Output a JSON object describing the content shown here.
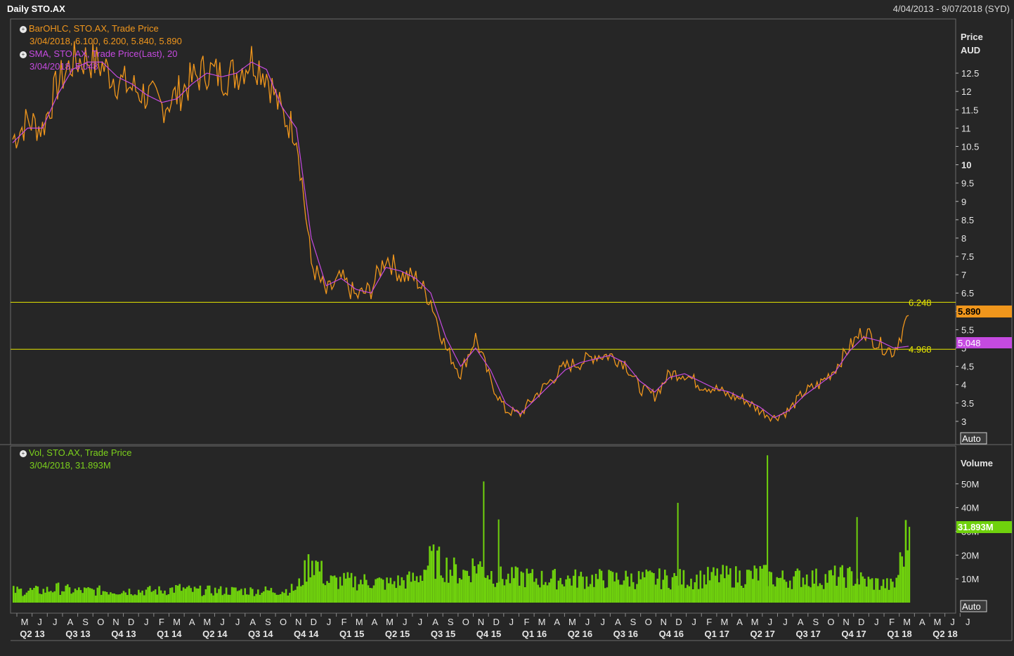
{
  "window": {
    "title": "Daily STO.AX",
    "date_range": "4/04/2013 - 9/07/2018 (SYD)"
  },
  "legend": {
    "price": [
      {
        "text": "BarOHLC, STO.AX, Trade Price",
        "icon": "info-icon"
      },
      {
        "text": "3/04/2018, 6.100, 6.200, 5.840, 5.890"
      },
      {
        "text": "SMA, STO.AX, Trade Price(Last),  20",
        "icon": "info-icon"
      },
      {
        "text": "3/04/2018, 5.048"
      }
    ],
    "volume": [
      {
        "text": "Vol, STO.AX, Trade Price",
        "icon": "info-icon"
      },
      {
        "text": "3/04/2018, 31.893M"
      }
    ]
  },
  "colors": {
    "background": "#262626",
    "price": "#f0961c",
    "sma": "#c54ae0",
    "volume": "#6fd10d",
    "hline": "#e8e800",
    "grid": "#555555"
  },
  "chart_data": [
    {
      "type": "line",
      "panel": "price",
      "ylabel": "Price AUD",
      "ylabel_lines": [
        "Price",
        "AUD"
      ],
      "ylim": [
        2.5,
        13.0
      ],
      "yticks": [
        3,
        3.5,
        4,
        4.5,
        5,
        5.5,
        6,
        6.5,
        7,
        7.5,
        8,
        8.5,
        9,
        9.5,
        10,
        10.5,
        11,
        11.5,
        12,
        12.5
      ],
      "ytick_labels": [
        "3",
        "3.5",
        "4",
        "4.5",
        "5",
        "5.5",
        "6",
        "6.5",
        "7",
        "7.5",
        "8",
        "8.5",
        "9",
        "9.5",
        "10",
        "10.5",
        "11",
        "11.5",
        "12",
        "12.5"
      ],
      "bold_ticks": [
        "10"
      ],
      "x": [
        "2013-04",
        "2013-05",
        "2013-06",
        "2013-07",
        "2013-08",
        "2013-09",
        "2013-10",
        "2013-11",
        "2013-12",
        "2014-01",
        "2014-02",
        "2014-03",
        "2014-04",
        "2014-05",
        "2014-06",
        "2014-07",
        "2014-08",
        "2014-09",
        "2014-10",
        "2014-11",
        "2014-12",
        "2015-01",
        "2015-02",
        "2015-03",
        "2015-04",
        "2015-05",
        "2015-06",
        "2015-07",
        "2015-08",
        "2015-09",
        "2015-10",
        "2015-11",
        "2015-12",
        "2016-01",
        "2016-02",
        "2016-03",
        "2016-04",
        "2016-05",
        "2016-06",
        "2016-07",
        "2016-08",
        "2016-09",
        "2016-10",
        "2016-11",
        "2016-12",
        "2017-01",
        "2017-02",
        "2017-03",
        "2017-04",
        "2017-05",
        "2017-06",
        "2017-07",
        "2017-08",
        "2017-09",
        "2017-10",
        "2017-11",
        "2017-12",
        "2018-01",
        "2018-02",
        "2018-03",
        "2018-04"
      ],
      "series": [
        {
          "name": "BarOHLC, STO.AX, Trade Price",
          "values": [
            10.7,
            11.2,
            11.0,
            12.2,
            12.8,
            12.9,
            12.7,
            12.3,
            12.1,
            11.9,
            11.6,
            11.9,
            12.3,
            12.6,
            12.4,
            12.5,
            12.9,
            12.5,
            11.4,
            10.9,
            7.3,
            6.5,
            6.9,
            6.4,
            6.6,
            7.5,
            7.0,
            6.9,
            6.3,
            5.0,
            4.3,
            5.3,
            4.1,
            3.3,
            3.2,
            3.7,
            4.1,
            4.5,
            4.6,
            4.8,
            4.8,
            4.6,
            3.9,
            3.7,
            4.3,
            4.3,
            4.0,
            3.9,
            3.7,
            3.6,
            3.3,
            3.1,
            3.3,
            3.8,
            4.0,
            4.4,
            5.0,
            5.5,
            5.1,
            4.9,
            5.89
          ]
        },
        {
          "name": "SMA, STO.AX, Trade Price(Last),  20",
          "values": [
            10.6,
            11.0,
            11.0,
            11.9,
            12.6,
            12.8,
            12.8,
            12.4,
            12.2,
            11.9,
            11.7,
            11.8,
            12.2,
            12.5,
            12.4,
            12.5,
            12.8,
            12.6,
            11.6,
            11.0,
            8.0,
            6.7,
            6.9,
            6.6,
            6.5,
            7.2,
            7.1,
            6.9,
            6.5,
            5.3,
            4.5,
            5.0,
            4.4,
            3.5,
            3.2,
            3.6,
            4.0,
            4.4,
            4.6,
            4.7,
            4.8,
            4.6,
            4.1,
            3.8,
            4.2,
            4.3,
            4.1,
            3.9,
            3.8,
            3.6,
            3.4,
            3.1,
            3.3,
            3.7,
            4.0,
            4.3,
            4.9,
            5.3,
            5.2,
            5.0,
            5.048
          ]
        }
      ],
      "hlines": [
        {
          "value": 6.248,
          "label": "6.248"
        },
        {
          "value": 4.968,
          "label": "4.968"
        }
      ],
      "last_price_tag": "5.890",
      "last_sma_tag": "5.048",
      "scale_button": "Auto"
    },
    {
      "type": "bar",
      "panel": "volume",
      "ylabel": "Volume",
      "ylim": [
        0,
        60
      ],
      "yunit": "M",
      "yticks": [
        10,
        20,
        30,
        40,
        50
      ],
      "ytick_labels": [
        "10M",
        "20M",
        "30M",
        "40M",
        "50M"
      ],
      "x": [
        "2013-04",
        "2013-05",
        "2013-06",
        "2013-07",
        "2013-08",
        "2013-09",
        "2013-10",
        "2013-11",
        "2013-12",
        "2014-01",
        "2014-02",
        "2014-03",
        "2014-04",
        "2014-05",
        "2014-06",
        "2014-07",
        "2014-08",
        "2014-09",
        "2014-10",
        "2014-11",
        "2014-12",
        "2015-01",
        "2015-02",
        "2015-03",
        "2015-04",
        "2015-05",
        "2015-06",
        "2015-07",
        "2015-08",
        "2015-09",
        "2015-10",
        "2015-11",
        "2015-12",
        "2016-01",
        "2016-02",
        "2016-03",
        "2016-04",
        "2016-05",
        "2016-06",
        "2016-07",
        "2016-08",
        "2016-09",
        "2016-10",
        "2016-11",
        "2016-12",
        "2017-01",
        "2017-02",
        "2017-03",
        "2017-04",
        "2017-05",
        "2017-06",
        "2017-07",
        "2017-08",
        "2017-09",
        "2017-10",
        "2017-11",
        "2017-12",
        "2018-01",
        "2018-02",
        "2018-03",
        "2018-04"
      ],
      "values": [
        5,
        5,
        5,
        6,
        5,
        5,
        5,
        5,
        5,
        5,
        5,
        6,
        5,
        5,
        5,
        5,
        5,
        5,
        5,
        6,
        19,
        9,
        9,
        9,
        9,
        8,
        9,
        10,
        18,
        15,
        12,
        16,
        12,
        10,
        11,
        10,
        10,
        10,
        10,
        10,
        10,
        10,
        10,
        10,
        10,
        10,
        10,
        11,
        11,
        11,
        12,
        10,
        10,
        11,
        10,
        11,
        11,
        9,
        8,
        7,
        31.893
      ],
      "spikes": [
        {
          "x": "2015-11",
          "value": 51
        },
        {
          "x": "2015-12",
          "value": 35
        },
        {
          "x": "2016-12",
          "value": 42
        },
        {
          "x": "2017-06",
          "value": 62
        },
        {
          "x": "2017-12",
          "value": 36
        }
      ],
      "last_volume_tag": "31.893M",
      "scale_button": "Auto"
    }
  ],
  "x_axis": {
    "months": [
      "M",
      "J",
      "J",
      "A",
      "S",
      "O",
      "N",
      "D",
      "J",
      "F",
      "M",
      "A",
      "M",
      "J",
      "J",
      "A",
      "S",
      "O",
      "N",
      "D",
      "J",
      "F",
      "M",
      "A",
      "M",
      "J",
      "J",
      "A",
      "S",
      "O",
      "N",
      "D",
      "J",
      "F",
      "M",
      "A",
      "M",
      "J",
      "J",
      "A",
      "S",
      "O",
      "N",
      "D",
      "J",
      "F",
      "M",
      "A",
      "M",
      "J",
      "J",
      "A",
      "S",
      "O",
      "N",
      "D",
      "J",
      "F",
      "M",
      "A",
      "M",
      "J",
      "J"
    ],
    "quarters": [
      "Q2 13",
      "Q3 13",
      "Q4 13",
      "Q1 14",
      "Q2 14",
      "Q3 14",
      "Q4 14",
      "Q1 15",
      "Q2 15",
      "Q3 15",
      "Q4 15",
      "Q1 16",
      "Q2 16",
      "Q3 16",
      "Q4 16",
      "Q1 17",
      "Q2 17",
      "Q3 17",
      "Q4 17",
      "Q1 18",
      "Q2 18"
    ]
  }
}
